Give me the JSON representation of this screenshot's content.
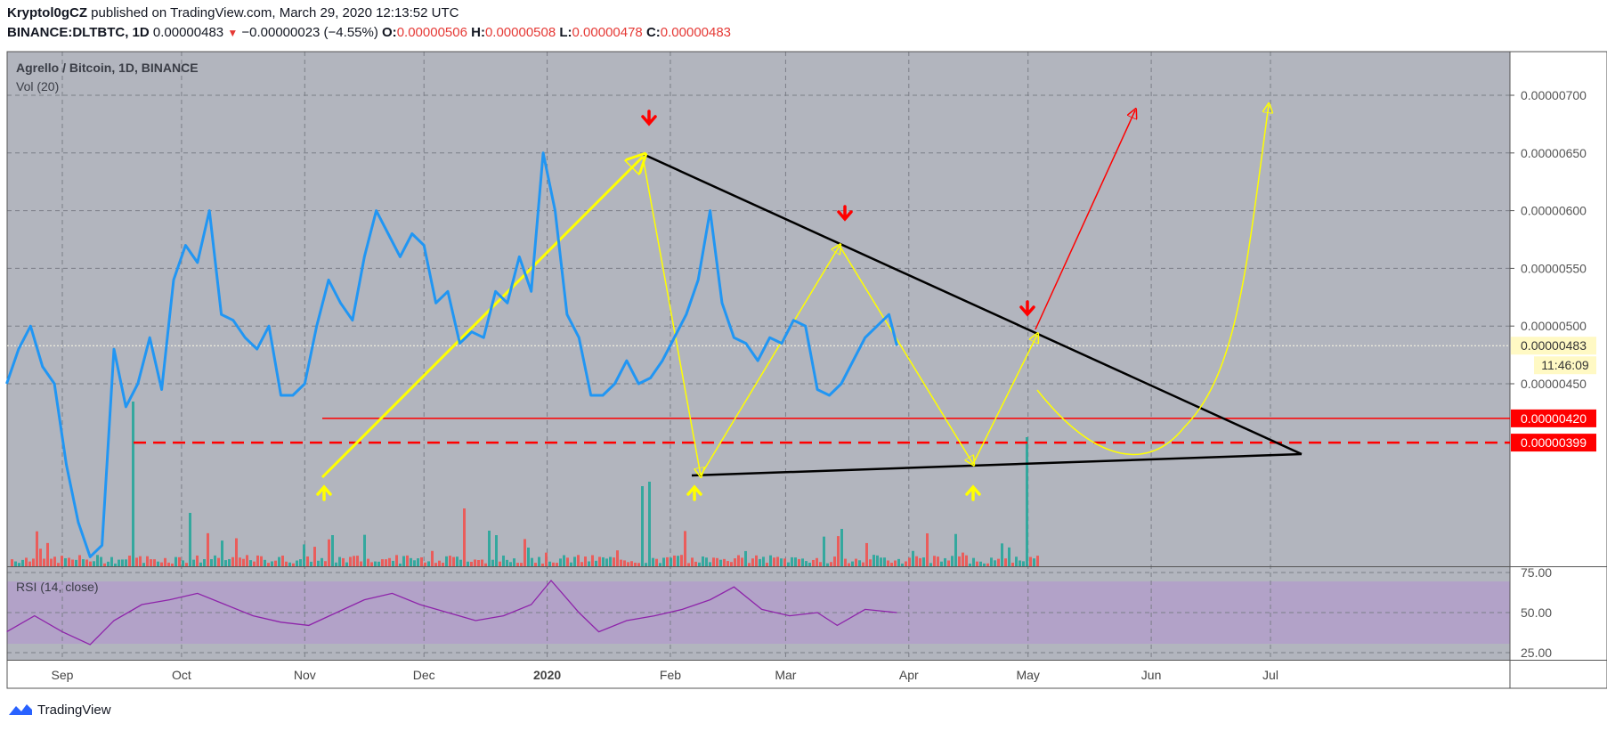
{
  "header": {
    "author": "Kryptol0gCZ",
    "published_text": "published on TradingView.com, March 29, 2020 12:13:52 UTC",
    "symbol": "BINANCE:DLTBTC, 1D",
    "last": "0.00000483",
    "change": "−0.00000023 (−4.55%)",
    "o_label": "O:",
    "o_value": "0.00000506",
    "h_label": "H:",
    "h_value": "0.00000508",
    "l_label": "L:",
    "l_value": "0.00000478",
    "c_label": "C:",
    "c_value": "0.00000483"
  },
  "legend": {
    "title": "Agrello / Bitcoin, 1D, BINANCE",
    "volume": "Vol (20)",
    "rsi": "RSI (14, close)"
  },
  "price_axis": {
    "ticks": [
      "0.00000700",
      "0.00000650",
      "0.00000600",
      "0.00000550",
      "0.00000500",
      "0.00000450"
    ],
    "current_price_label": "0.00000483",
    "countdown_label": "11:46:09",
    "line_420_label": "0.00000420",
    "line_399_label": "0.00000399"
  },
  "rsi_axis": {
    "ticks": [
      "75.00",
      "50.00",
      "25.00"
    ]
  },
  "time_axis": {
    "labels": [
      "Sep",
      "Oct",
      "Nov",
      "Dec",
      "2020",
      "Feb",
      "Mar",
      "Apr",
      "May",
      "Jun",
      "Jul"
    ]
  },
  "footer": {
    "brand": "TradingView"
  },
  "colors": {
    "plot_bg": "#b2b5be",
    "rsi_band": "#b29fca",
    "price_line": "#2196f3",
    "rsi_line": "#8e24aa",
    "vol_up": "#26a69a",
    "vol_down": "#ef5350",
    "support": "#ff0000",
    "triangle": "#000000",
    "path": "#ffff00",
    "arrow_down": "#ff0000"
  },
  "chart_data": {
    "type": "line",
    "price": {
      "unit": "BTC",
      "x_dates": [
        "2019-08-18",
        "2019-08-21",
        "2019-08-24",
        "2019-08-27",
        "2019-08-30",
        "2019-09-02",
        "2019-09-05",
        "2019-09-08",
        "2019-09-11",
        "2019-09-14",
        "2019-09-17",
        "2019-09-20",
        "2019-09-23",
        "2019-09-26",
        "2019-09-29",
        "2019-10-02",
        "2019-10-05",
        "2019-10-08",
        "2019-10-11",
        "2019-10-14",
        "2019-10-17",
        "2019-10-20",
        "2019-10-23",
        "2019-10-26",
        "2019-10-29",
        "2019-11-01",
        "2019-11-04",
        "2019-11-07",
        "2019-11-10",
        "2019-11-13",
        "2019-11-16",
        "2019-11-19",
        "2019-11-22",
        "2019-11-25",
        "2019-11-28",
        "2019-12-01",
        "2019-12-04",
        "2019-12-07",
        "2019-12-10",
        "2019-12-13",
        "2019-12-16",
        "2019-12-19",
        "2019-12-22",
        "2019-12-25",
        "2019-12-28",
        "2019-12-31",
        "2020-01-03",
        "2020-01-06",
        "2020-01-09",
        "2020-01-12",
        "2020-01-15",
        "2020-01-18",
        "2020-01-21",
        "2020-01-24",
        "2020-01-27",
        "2020-01-30",
        "2020-02-02",
        "2020-02-05",
        "2020-02-08",
        "2020-02-11",
        "2020-02-14",
        "2020-02-17",
        "2020-02-20",
        "2020-02-23",
        "2020-02-26",
        "2020-02-29",
        "2020-03-03",
        "2020-03-06",
        "2020-03-09",
        "2020-03-12",
        "2020-03-15",
        "2020-03-18",
        "2020-03-21",
        "2020-03-24",
        "2020-03-27",
        "2020-03-29"
      ],
      "y": [
        4.5e-06,
        4.8e-06,
        5e-06,
        4.65e-06,
        4.5e-06,
        3.8e-06,
        3.3e-06,
        3e-06,
        3.1e-06,
        4.8e-06,
        4.3e-06,
        4.5e-06,
        4.9e-06,
        4.45e-06,
        5.4e-06,
        5.7e-06,
        5.55e-06,
        6e-06,
        5.1e-06,
        5.05e-06,
        4.9e-06,
        4.8e-06,
        5e-06,
        4.4e-06,
        4.4e-06,
        4.5e-06,
        5e-06,
        5.4e-06,
        5.2e-06,
        5.05e-06,
        5.6e-06,
        6e-06,
        5.8e-06,
        5.6e-06,
        5.8e-06,
        5.7e-06,
        5.2e-06,
        5.3e-06,
        4.85e-06,
        4.95e-06,
        4.9e-06,
        5.3e-06,
        5.2e-06,
        5.6e-06,
        5.3e-06,
        6.5e-06,
        6e-06,
        5.1e-06,
        4.9e-06,
        4.4e-06,
        4.4e-06,
        4.5e-06,
        4.7e-06,
        4.5e-06,
        4.55e-06,
        4.7e-06,
        4.9e-06,
        5.1e-06,
        5.4e-06,
        6e-06,
        5.2e-06,
        4.9e-06,
        4.85e-06,
        4.7e-06,
        4.9e-06,
        4.85e-06,
        5.05e-06,
        5e-06,
        4.45e-06,
        4.4e-06,
        4.5e-06,
        4.7e-06,
        4.9e-06,
        5e-06,
        5.1e-06,
        4.83e-06
      ]
    },
    "rsi": {
      "x_dates": [
        "2019-08-18",
        "2019-08-25",
        "2019-09-01",
        "2019-09-08",
        "2019-09-14",
        "2019-09-21",
        "2019-09-28",
        "2019-10-05",
        "2019-10-12",
        "2019-10-19",
        "2019-10-26",
        "2019-11-02",
        "2019-11-09",
        "2019-11-16",
        "2019-11-23",
        "2019-11-30",
        "2019-12-07",
        "2019-12-14",
        "2019-12-21",
        "2019-12-28",
        "2020-01-02",
        "2020-01-09",
        "2020-01-14",
        "2020-01-21",
        "2020-01-28",
        "2020-02-04",
        "2020-02-11",
        "2020-02-17",
        "2020-02-24",
        "2020-03-02",
        "2020-03-09",
        "2020-03-14",
        "2020-03-21",
        "2020-03-29"
      ],
      "y": [
        38,
        48,
        38,
        30,
        45,
        55,
        58,
        62,
        55,
        48,
        44,
        42,
        50,
        58,
        62,
        55,
        50,
        45,
        48,
        55,
        70,
        50,
        38,
        45,
        48,
        52,
        58,
        66,
        52,
        48,
        50,
        42,
        52,
        50
      ]
    },
    "ylim_price": [
      3.9e-06,
      7.35e-06
    ],
    "ylim_rsi": [
      20,
      80
    ],
    "annotations": {
      "support_solid": 4.2e-06,
      "support_dashed": 3.99e-06,
      "current_price_line": 4.83e-06
    }
  }
}
